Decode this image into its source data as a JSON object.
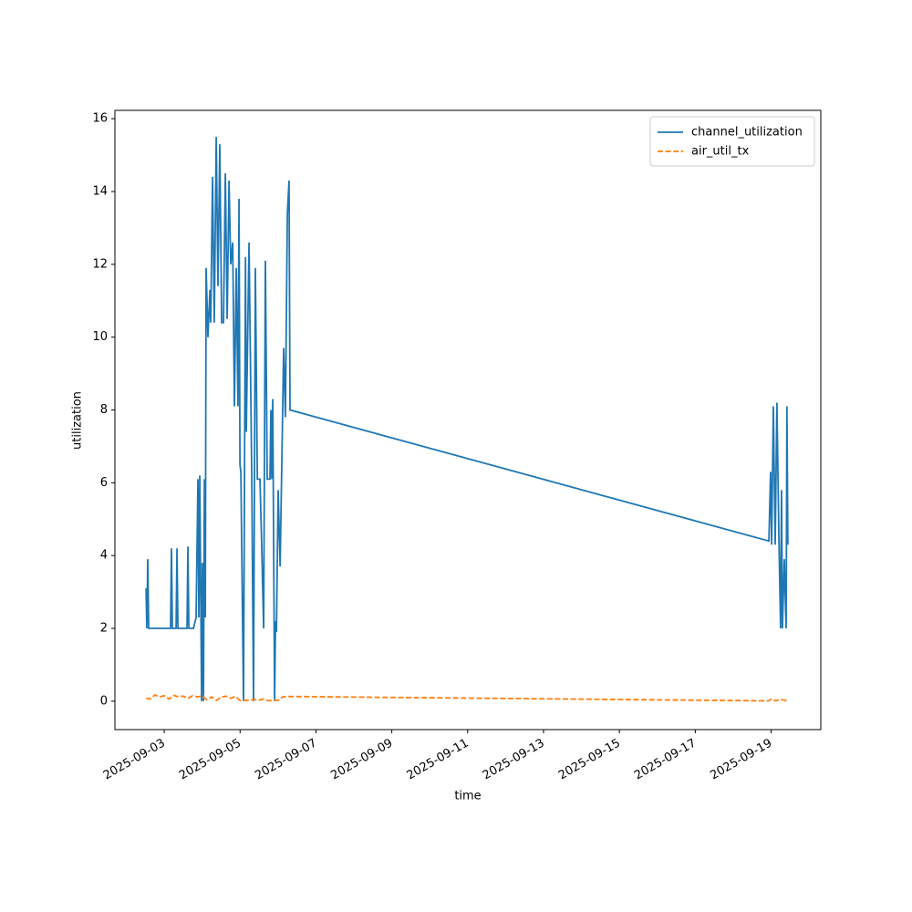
{
  "chart_data": {
    "type": "line",
    "x_label": "time",
    "y_label": "utilization",
    "xlim": [
      "2025-09-01T16:48",
      "2025-09-20T07:26"
    ],
    "xticks": [
      "2025-09-03",
      "2025-09-05",
      "2025-09-07",
      "2025-09-09",
      "2025-09-11",
      "2025-09-13",
      "2025-09-15",
      "2025-09-17",
      "2025-09-19"
    ],
    "ylim": [
      -0.78,
      16.23
    ],
    "yticks": [
      0,
      2,
      4,
      6,
      8,
      10,
      12,
      14,
      16
    ],
    "legend": "upper right",
    "series": [
      {
        "name": "channel_utilization",
        "color": "#1f77b4",
        "dash": false,
        "x": [
          "2025-09-02T12:30",
          "2025-09-02T13:00",
          "2025-09-02T13:35",
          "2025-09-02T14:10",
          "2025-09-03T04:00",
          "2025-09-03T04:35",
          "2025-09-03T05:10",
          "2025-09-03T07:30",
          "2025-09-03T08:05",
          "2025-09-03T08:40",
          "2025-09-03T14:25",
          "2025-09-03T15:00",
          "2025-09-03T15:35",
          "2025-09-03T18:30",
          "2025-09-03T20:10",
          "2025-09-03T21:20",
          "2025-09-03T21:55",
          "2025-09-03T22:30",
          "2025-09-03T23:40",
          "2025-09-04T00:10",
          "2025-09-04T00:50",
          "2025-09-04T01:25",
          "2025-09-04T02:00",
          "2025-09-04T02:30",
          "2025-09-04T03:40",
          "2025-09-04T04:55",
          "2025-09-04T05:25",
          "2025-09-04T06:35",
          "2025-09-04T07:40",
          "2025-09-04T08:55",
          "2025-09-04T10:00",
          "2025-09-04T11:10",
          "2025-09-04T12:20",
          "2025-09-04T13:30",
          "2025-09-04T14:40",
          "2025-09-04T15:50",
          "2025-09-04T17:00",
          "2025-09-04T18:05",
          "2025-09-04T19:20",
          "2025-09-04T20:25",
          "2025-09-04T21:35",
          "2025-09-04T22:40",
          "2025-09-04T23:20",
          "2025-09-04T23:55",
          "2025-09-05T00:30",
          "2025-09-05T02:10",
          "2025-09-05T03:25",
          "2025-09-05T03:55",
          "2025-09-05T05:40",
          "2025-09-05T07:25",
          "2025-09-05T08:30",
          "2025-09-05T09:40",
          "2025-09-05T10:55",
          "2025-09-05T12:35",
          "2025-09-05T13:40",
          "2025-09-05T14:55",
          "2025-09-05T16:00",
          "2025-09-05T17:10",
          "2025-09-05T18:55",
          "2025-09-05T19:30",
          "2025-09-05T20:05",
          "2025-09-05T20:40",
          "2025-09-05T21:50",
          "2025-09-05T22:25",
          "2025-09-05T23:00",
          "2025-09-06T00:05",
          "2025-09-06T01:20",
          "2025-09-06T03:35",
          "2025-09-06T04:40",
          "2025-09-06T05:55",
          "2025-09-06T07:00",
          "2025-09-06T07:35",
          "2025-09-18T22:35",
          "2025-09-18T23:40",
          "2025-09-19T00:20",
          "2025-09-19T01:25",
          "2025-09-19T02:35",
          "2025-09-19T03:40",
          "2025-09-19T04:55",
          "2025-09-19T06:00",
          "2025-09-19T06:35",
          "2025-09-19T07:10",
          "2025-09-19T08:20",
          "2025-09-19T09:30",
          "2025-09-19T10:00",
          "2025-09-19T10:35"
        ],
        "values": [
          3.1,
          2.0,
          3.9,
          2.0,
          2.0,
          4.2,
          2.0,
          2.0,
          4.2,
          2.0,
          2.0,
          4.25,
          2.0,
          2.0,
          2.3,
          6.1,
          2.3,
          6.2,
          0.0,
          3.8,
          0.0,
          6.1,
          2.3,
          11.9,
          10.0,
          11.3,
          10.4,
          14.4,
          10.4,
          15.5,
          11.4,
          15.3,
          10.4,
          10.4,
          14.5,
          10.5,
          14.3,
          12.0,
          12.6,
          8.1,
          11.9,
          8.1,
          13.8,
          6.5,
          6.3,
          0.0,
          12.2,
          7.4,
          12.6,
          6.1,
          0.0,
          11.9,
          6.1,
          6.1,
          4.3,
          2.0,
          12.1,
          6.1,
          6.1,
          8.0,
          6.1,
          8.3,
          0.0,
          2.2,
          1.9,
          5.8,
          3.7,
          9.7,
          7.8,
          13.4,
          14.3,
          8.0,
          4.4,
          6.3,
          4.3,
          8.1,
          4.3,
          8.2,
          4.5,
          2.0,
          5.8,
          2.0,
          3.9,
          2.0,
          8.1,
          4.3
        ]
      },
      {
        "name": "air_util_tx",
        "color": "#ff7f0e",
        "dash": true,
        "x": [
          "2025-09-02T12:30",
          "2025-09-02T15:00",
          "2025-09-02T18:00",
          "2025-09-02T21:00",
          "2025-09-03T00:00",
          "2025-09-03T03:00",
          "2025-09-03T06:00",
          "2025-09-03T09:00",
          "2025-09-03T12:00",
          "2025-09-03T15:00",
          "2025-09-03T18:00",
          "2025-09-03T21:00",
          "2025-09-04T00:00",
          "2025-09-04T03:00",
          "2025-09-04T06:00",
          "2025-09-04T09:00",
          "2025-09-04T12:00",
          "2025-09-04T15:00",
          "2025-09-04T18:00",
          "2025-09-04T21:00",
          "2025-09-05T00:00",
          "2025-09-05T03:00",
          "2025-09-05T06:00",
          "2025-09-05T09:00",
          "2025-09-05T12:00",
          "2025-09-05T15:00",
          "2025-09-05T18:00",
          "2025-09-05T21:00",
          "2025-09-06T00:00",
          "2025-09-06T03:00",
          "2025-09-06T06:00",
          "2025-09-18T22:30",
          "2025-09-19T00:00",
          "2025-09-19T03:00",
          "2025-09-19T06:00",
          "2025-09-19T09:00",
          "2025-09-19T11:00"
        ],
        "values": [
          0.08,
          0.06,
          0.17,
          0.12,
          0.15,
          0.06,
          0.16,
          0.12,
          0.14,
          0.08,
          0.15,
          0.12,
          0.14,
          0.04,
          0.12,
          0.02,
          0.11,
          0.14,
          0.08,
          0.13,
          0.02,
          0.03,
          0.02,
          0.05,
          0.03,
          0.06,
          0.01,
          0.04,
          0.02,
          0.12,
          0.13,
          0.01,
          0.06,
          0.01,
          0.05,
          0.02,
          0.03
        ]
      }
    ]
  }
}
